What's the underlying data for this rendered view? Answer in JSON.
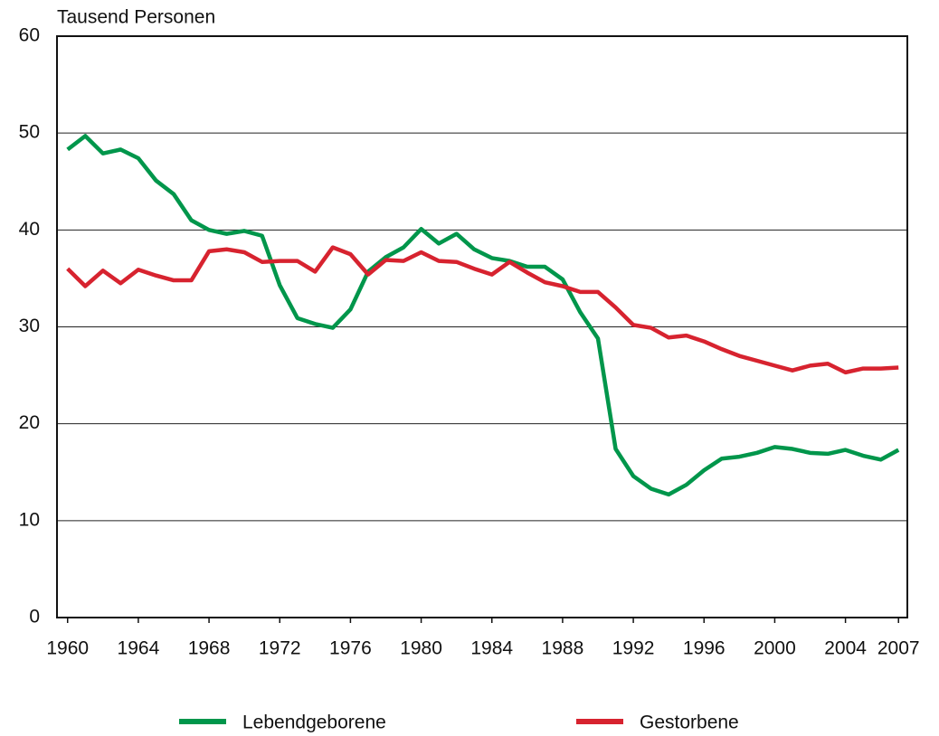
{
  "chart_data": {
    "type": "line",
    "ylabel": "Tausend Personen",
    "x": [
      1960,
      1961,
      1962,
      1963,
      1964,
      1965,
      1966,
      1967,
      1968,
      1969,
      1970,
      1971,
      1972,
      1973,
      1974,
      1975,
      1976,
      1977,
      1978,
      1979,
      1980,
      1981,
      1982,
      1983,
      1984,
      1985,
      1986,
      1987,
      1988,
      1989,
      1990,
      1991,
      1992,
      1993,
      1994,
      1995,
      1996,
      1997,
      1998,
      1999,
      2000,
      2001,
      2002,
      2003,
      2004,
      2005,
      2006,
      2007
    ],
    "series": [
      {
        "name": "Lebendgeborene",
        "color": "#00964b",
        "values": [
          48.3,
          49.7,
          47.9,
          48.3,
          47.4,
          45.1,
          43.7,
          41.0,
          40.0,
          39.6,
          39.9,
          39.4,
          34.3,
          30.9,
          30.3,
          29.9,
          31.8,
          35.7,
          37.2,
          38.2,
          40.1,
          38.6,
          39.6,
          38.0,
          37.1,
          36.8,
          36.2,
          36.2,
          34.9,
          31.5,
          28.8,
          17.4,
          14.6,
          13.3,
          12.7,
          13.7,
          15.2,
          16.4,
          16.6,
          17.0,
          17.6,
          17.4,
          17.0,
          16.9,
          17.3,
          16.7,
          16.3,
          17.3
        ]
      },
      {
        "name": "Gestorbene",
        "color": "#d7232f",
        "values": [
          36.0,
          34.2,
          35.8,
          34.5,
          35.9,
          35.3,
          34.8,
          34.8,
          37.8,
          38.0,
          37.7,
          36.7,
          36.8,
          36.8,
          35.7,
          38.2,
          37.5,
          35.4,
          36.9,
          36.8,
          37.7,
          36.8,
          36.7,
          36.0,
          35.4,
          36.7,
          35.6,
          34.6,
          34.2,
          33.6,
          33.6,
          32.0,
          30.2,
          29.9,
          28.9,
          29.1,
          28.5,
          27.7,
          27.0,
          26.5,
          26.0,
          25.5,
          26.0,
          26.2,
          25.3,
          25.7,
          25.7,
          25.8
        ]
      }
    ],
    "xlim": [
      1959.4,
      2007.5
    ],
    "xticks": [
      1960,
      1964,
      1968,
      1972,
      1976,
      1980,
      1984,
      1988,
      1992,
      1996,
      2000,
      2004,
      2007
    ],
    "ylim": [
      0,
      60
    ],
    "yticks": [
      0,
      10,
      20,
      30,
      40,
      50,
      60
    ],
    "grid": true,
    "legend": "bottom"
  }
}
